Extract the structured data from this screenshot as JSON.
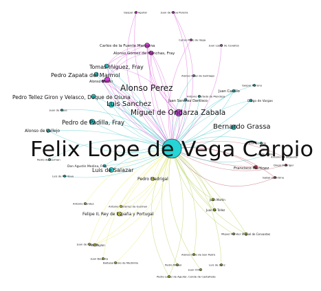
{
  "center": {
    "label": "Felix Lope de Vega Carpio",
    "color": "#25d4d4"
  },
  "nodes": [
    {
      "id": "alonso_perez",
      "label": "Alonso Perez",
      "color": "#d63fd6"
    },
    {
      "id": "miguel",
      "label": "Miguel de Ondarza Zabala",
      "color": "#b64cc7"
    },
    {
      "id": "luis_sanchez",
      "label": "Luis Sanchez",
      "color": "#2bc1c1"
    },
    {
      "id": "bernardo",
      "label": "Bernardo Grassa",
      "color": "#2ab5b5"
    },
    {
      "id": "tomas",
      "label": "Tomas Iñiguez, Fray",
      "color": "#2bc1c1"
    },
    {
      "id": "pedro_zapata",
      "label": "Pedro Zapata del Marmol",
      "color": "#2bc1c1"
    },
    {
      "id": "pedro_tellez",
      "label": "Pedro Tellez Giron y Velasco, Duque de Osuna",
      "color": "#2bc1c1"
    },
    {
      "id": "pedro_padilla",
      "label": "Pedro de Padilla, Fray",
      "color": "#2bc1c1"
    },
    {
      "id": "alonso_vallejo",
      "label": "Alonso de Vallejo",
      "color": "#2bc1c1"
    },
    {
      "id": "luis_salazar",
      "label": "Luis de Salazar",
      "color": "#2bc1c1"
    },
    {
      "id": "felipe",
      "label": "Felipe II, Rey de España y Portugal",
      "color": "#e8e85a"
    },
    {
      "id": "pedro_madrigal",
      "label": "Pedro Madrigal",
      "color": "#e8e85a"
    },
    {
      "id": "alonso_martin",
      "label": "Alonso Martin",
      "color": "#d63fd6"
    },
    {
      "id": "juan_sanchez",
      "label": "Juan Sanchez Dantisco",
      "color": "#2bc1c1"
    },
    {
      "id": "francisco_martinez",
      "label": "Francisco Martinez",
      "color": "#b03a50"
    },
    {
      "id": "carlos",
      "label": "Carlos de la Fuente Marquina",
      "color": "#d63fd6"
    },
    {
      "id": "alonso_gomez",
      "label": "Alonso Gomez de Menchas, Fray",
      "color": "#d63fd6"
    },
    {
      "id": "juan_castillo",
      "label": "Juan Castillo",
      "color": "#2bc1c1"
    },
    {
      "id": "diego_vargas",
      "label": "Diego de Vargas",
      "color": "#2bc1c1"
    },
    {
      "id": "don_agustin",
      "label": "Don Agustin Medina, Fray",
      "color": "#2bc1c1"
    },
    {
      "id": "ana_baylon",
      "label": "Ana Baylon",
      "color": "#e8e85a"
    },
    {
      "id": "juan_martin",
      "label": "Juan Martin",
      "color": "#a6c832"
    },
    {
      "id": "juan_tellez",
      "label": "Juan de Tellez",
      "color": "#a6c832"
    },
    {
      "id": "miguel_cervantes",
      "label": "Miguel de Cervantes",
      "color": "#a6c832"
    }
  ],
  "small_labels": [
    {
      "id": "s1",
      "label": "Gaspar de Aguilar",
      "color": "#d63fd6"
    },
    {
      "id": "s2",
      "label": "Juan de Ulloa Pereira",
      "color": "#d63fd6"
    },
    {
      "id": "s3",
      "label": "Carlos Pinto de Vega",
      "color": "#d63fd6"
    },
    {
      "id": "s4",
      "label": "Juan Lopez de Cevallos",
      "color": "#d63fd6"
    },
    {
      "id": "s5",
      "label": "Alonso Velez de Santiago",
      "color": "#2bc1c1"
    },
    {
      "id": "s6",
      "label": "Antonio Hurtado de Mendoza",
      "color": "#2bc1c1"
    },
    {
      "id": "s7",
      "label": "Gaspar Moreno",
      "color": "#2bc1c1"
    },
    {
      "id": "s8",
      "label": "Juan de Rojas",
      "color": "#2bc1c1"
    },
    {
      "id": "s9",
      "label": "Luis de Montoya",
      "color": "#2bc1c1"
    },
    {
      "id": "s10",
      "label": "Pedro de Guzman",
      "color": "#2bc1c1"
    },
    {
      "id": "s11",
      "label": "Juan Belando",
      "color": "#2bc1c1"
    },
    {
      "id": "s12",
      "label": "Ana de Castro",
      "color": "#2bc1c1"
    },
    {
      "id": "s13",
      "label": "Antonio de Sequeira",
      "color": "#b03a50"
    },
    {
      "id": "s14",
      "label": "Diego Madrigal",
      "color": "#b03a50"
    },
    {
      "id": "s15",
      "label": "Isabel de Urbina",
      "color": "#b03a50"
    },
    {
      "id": "s16",
      "label": "Antonio Mendez",
      "color": "#e8e85a"
    },
    {
      "id": "s17",
      "label": "Antonio Gutierrez de Guzman",
      "color": "#e8e85a"
    },
    {
      "id": "s18",
      "label": "Juan de la Serna",
      "color": "#e8e85a"
    },
    {
      "id": "s19",
      "label": "Baltasar Elisio de Medinilla",
      "color": "#e8e85a"
    },
    {
      "id": "s20",
      "label": "Juan Bautista",
      "color": "#e8e85a"
    },
    {
      "id": "s21",
      "label": "Alonso Ortiz de San Pedro",
      "color": "#a6c832"
    },
    {
      "id": "s22",
      "label": "Pedro Miguel",
      "color": "#a6c832"
    },
    {
      "id": "s23",
      "label": "Pedro Lopez de Aguilar, Conde de Castañeda",
      "color": "#a6c832"
    },
    {
      "id": "s24",
      "label": "Juan Ortiz",
      "color": "#a6c832"
    },
    {
      "id": "s25",
      "label": "Luis de Sanz",
      "color": "#a6c832"
    },
    {
      "id": "s26",
      "label": "Miguel Mendez",
      "color": "#a6c832"
    }
  ]
}
